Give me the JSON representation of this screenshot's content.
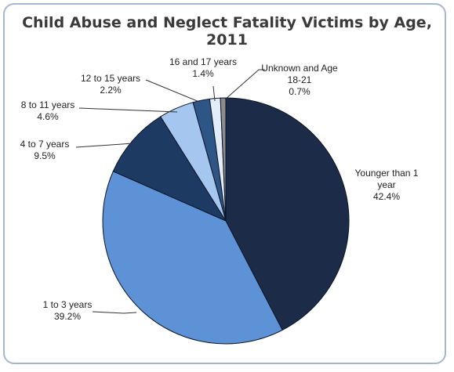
{
  "chart_data": {
    "type": "pie",
    "title": "Child Abuse and Neglect Fatality Victims by Age, 2011",
    "start_angle_deg": 0,
    "direction": "clockwise",
    "slices": [
      {
        "label_lines": [
          "Younger than 1",
          "year"
        ],
        "value": 42.4,
        "value_text": "42.4%",
        "color": "#1c2b48"
      },
      {
        "label_lines": [
          "1 to 3 years"
        ],
        "value": 39.2,
        "value_text": "39.2%",
        "color": "#5d93d6"
      },
      {
        "label_lines": [
          "4 to 7 years"
        ],
        "value": 9.5,
        "value_text": "9.5%",
        "color": "#1d3a63"
      },
      {
        "label_lines": [
          "8 to 11 years"
        ],
        "value": 4.6,
        "value_text": "4.6%",
        "color": "#a5c6ef"
      },
      {
        "label_lines": [
          "12 to 15 years"
        ],
        "value": 2.2,
        "value_text": "2.2%",
        "color": "#2d5586"
      },
      {
        "label_lines": [
          "16 and 17 years"
        ],
        "value": 1.4,
        "value_text": "1.4%",
        "color": "#e3edf9"
      },
      {
        "label_lines": [
          "Unknown and Age",
          "18-21"
        ],
        "value": 0.7,
        "value_text": "0.7%",
        "color": "#8c8c8c"
      }
    ]
  }
}
